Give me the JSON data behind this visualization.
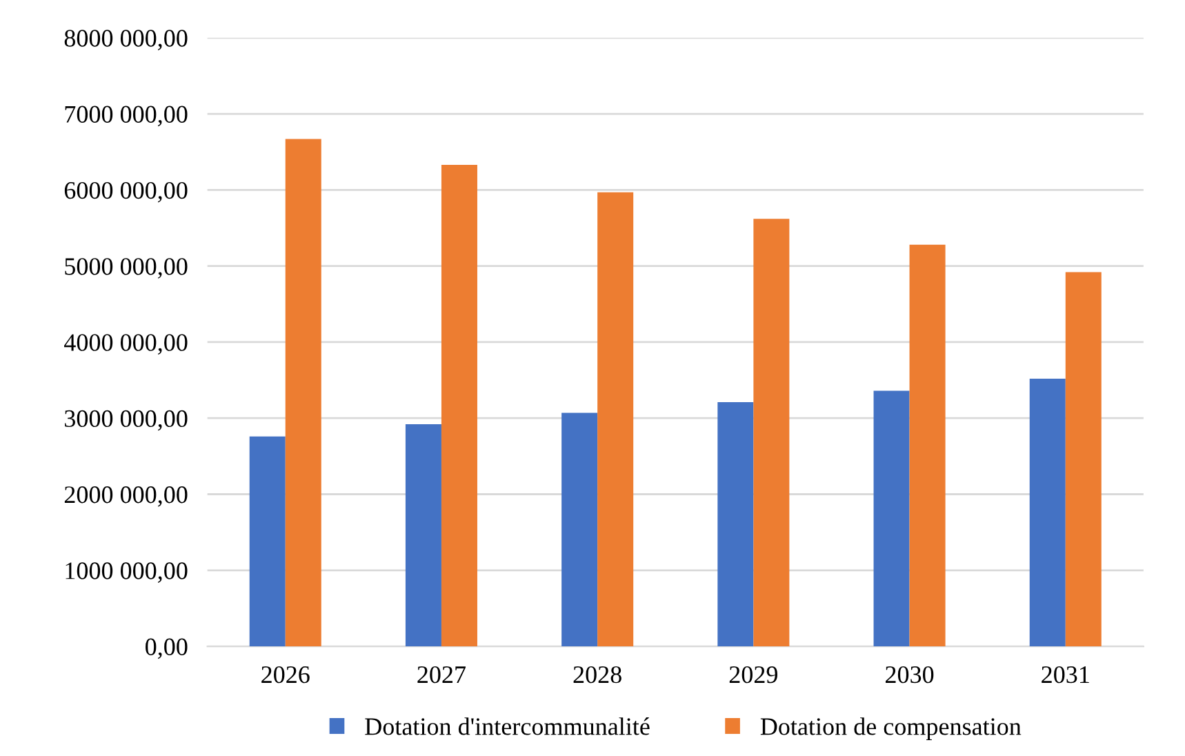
{
  "chart_data": {
    "type": "bar",
    "categories": [
      "2026",
      "2027",
      "2028",
      "2029",
      "2030",
      "2031"
    ],
    "series": [
      {
        "name": "Dotation d'intercommunalité",
        "color": "#4472c4",
        "values": [
          2760000,
          2920000,
          3070000,
          3210000,
          3360000,
          3520000
        ]
      },
      {
        "name": "Dotation de compensation",
        "color": "#ed7d31",
        "values": [
          6670000,
          6330000,
          5970000,
          5620000,
          5280000,
          4920000
        ]
      }
    ],
    "ylim": [
      0,
      8000000
    ],
    "yticks": [
      {
        "value": 0,
        "label": "0,00"
      },
      {
        "value": 1000000,
        "label": "1000 000,00"
      },
      {
        "value": 2000000,
        "label": "2000 000,00"
      },
      {
        "value": 3000000,
        "label": "3000 000,00"
      },
      {
        "value": 4000000,
        "label": "4000 000,00"
      },
      {
        "value": 5000000,
        "label": "5000 000,00"
      },
      {
        "value": 6000000,
        "label": "6000 000,00"
      },
      {
        "value": 7000000,
        "label": "7000 000,00"
      },
      {
        "value": 8000000,
        "label": "8000 000,00"
      }
    ],
    "grid": "y",
    "legend": "bottom"
  }
}
